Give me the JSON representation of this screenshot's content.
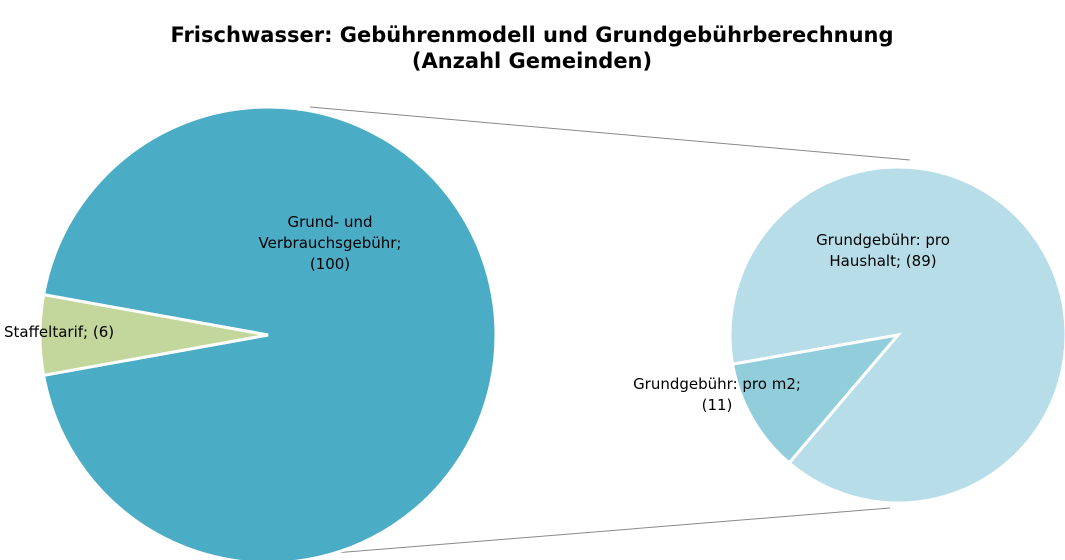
{
  "chart_data": {
    "type": "pie",
    "title": "Frischwasser: Gebührenmodell und Grundgebührberechnung",
    "subtitle": "(Anzahl Gemeinden)",
    "pies": [
      {
        "categories": [
          "Grund- und Verbrauchsgebühr;",
          "Staffeltarif;"
        ],
        "values": [
          100,
          6
        ],
        "value_labels": [
          "(100)",
          "(6)"
        ],
        "colors": [
          "#4bacc6",
          "#c3d69b"
        ]
      },
      {
        "categories": [
          "Grundgebühr: pro Haushalt;",
          "Grundgebühr: pro m2;"
        ],
        "values": [
          89,
          11
        ],
        "value_labels": [
          "(89)",
          "(11)"
        ],
        "colors": [
          "#b7dee8",
          "#92cddc"
        ]
      }
    ]
  }
}
